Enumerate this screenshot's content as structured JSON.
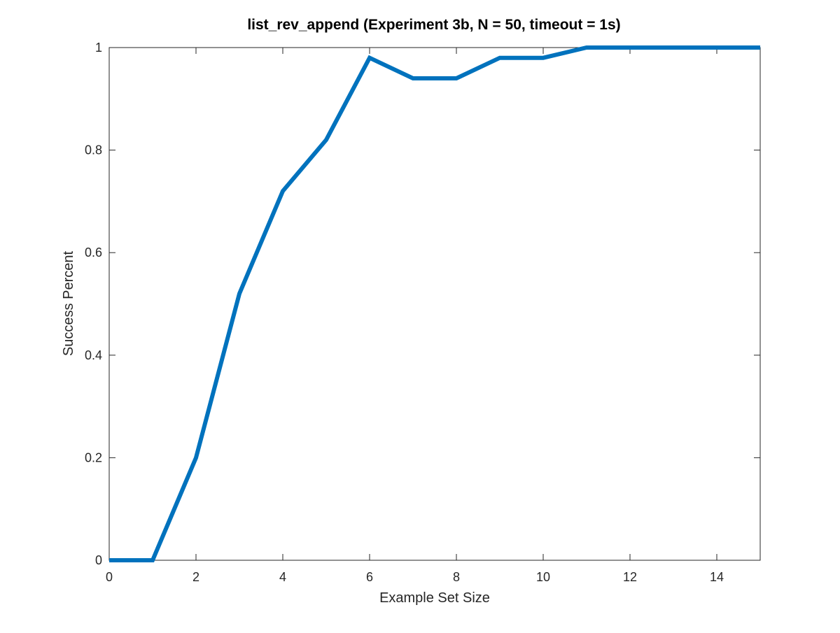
{
  "chart_data": {
    "type": "line",
    "title": "list_rev_append (Experiment 3b, N = 50, timeout = 1s)",
    "xlabel": "Example Set Size",
    "ylabel": "Success Percent",
    "xlim": [
      0,
      15
    ],
    "ylim": [
      0,
      1
    ],
    "xticks": [
      0,
      2,
      4,
      6,
      8,
      10,
      12,
      14
    ],
    "yticks": [
      0,
      0.2,
      0.4,
      0.6,
      0.8,
      1
    ],
    "xtick_labels": [
      "0",
      "2",
      "4",
      "6",
      "8",
      "10",
      "12",
      "14"
    ],
    "ytick_labels": [
      "0",
      "0.2",
      "0.4",
      "0.6",
      "0.8",
      "1"
    ],
    "grid": false,
    "legend": null,
    "series": [
      {
        "color": "#0072BD",
        "x": [
          0,
          1,
          2,
          3,
          4,
          5,
          6,
          7,
          8,
          9,
          10,
          11,
          12,
          13,
          14,
          15
        ],
        "y": [
          0,
          0,
          0.2,
          0.52,
          0.72,
          0.82,
          0.98,
          0.94,
          0.94,
          0.98,
          0.98,
          1,
          1,
          1,
          1,
          1
        ]
      }
    ]
  }
}
